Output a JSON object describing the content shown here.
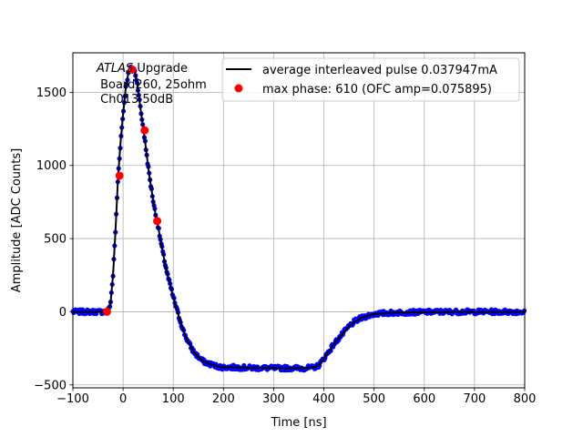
{
  "chart_data": {
    "type": "line",
    "title": "",
    "xlabel": "Time [ns]",
    "ylabel": "Amplitude [ADC Counts]",
    "xlim": [
      -100,
      800
    ],
    "ylim": [
      -520,
      1770
    ],
    "grid": true,
    "xticks": [
      -100,
      0,
      100,
      200,
      300,
      400,
      500,
      600,
      700,
      800
    ],
    "yticks": [
      -500,
      0,
      500,
      1000,
      1500
    ],
    "xtick_labels": [
      "−100",
      "0",
      "100",
      "200",
      "300",
      "400",
      "500",
      "600",
      "700",
      "800"
    ],
    "ytick_labels": [
      "−500",
      "0",
      "500",
      "1000",
      "1500"
    ],
    "annotation": {
      "atlas": "ATLAS",
      "upgrade": " Upgrade",
      "line2": " Board260, 25ohm",
      "line3": " Ch013 50dB"
    },
    "legend": {
      "placement": "top-right",
      "entries": [
        {
          "label": "average interleaved pulse 0.037947mA",
          "marker": "line",
          "color": "#000000"
        },
        {
          "label": "max phase: 610 (OFC amp=0.075895)",
          "marker": "circle",
          "color": "#ff0000"
        }
      ]
    },
    "series": [
      {
        "name": "average interleaved pulse 0.037947mA",
        "style": "line",
        "color": "#000000",
        "x": [
          -100,
          -40,
          -30,
          -25,
          -20,
          -15,
          -10,
          -5,
          0,
          5,
          10,
          15,
          18,
          22,
          25,
          30,
          35,
          40,
          45,
          50,
          55,
          60,
          65,
          70,
          75,
          80,
          90,
          100,
          110,
          120,
          130,
          140,
          150,
          160,
          175,
          190,
          200,
          225,
          250,
          300,
          330,
          360,
          375,
          385,
          390,
          400,
          410,
          420,
          430,
          440,
          450,
          460,
          470,
          480,
          490,
          500,
          520,
          550,
          600,
          650,
          700,
          750,
          800
        ],
        "y": [
          0,
          0,
          5,
          60,
          250,
          560,
          920,
          1160,
          1350,
          1520,
          1620,
          1660,
          1670,
          1655,
          1620,
          1520,
          1380,
          1260,
          1130,
          990,
          870,
          760,
          660,
          580,
          480,
          390,
          230,
          100,
          -20,
          -130,
          -210,
          -270,
          -310,
          -340,
          -360,
          -375,
          -380,
          -380,
          -383,
          -385,
          -385,
          -385,
          -383,
          -375,
          -365,
          -320,
          -270,
          -220,
          -180,
          -140,
          -100,
          -70,
          -50,
          -35,
          -25,
          -15,
          -10,
          -5,
          -2,
          0,
          0,
          0,
          0
        ]
      },
      {
        "name": "samples",
        "style": "scatter",
        "color": "#0000ff",
        "note": "dense blue sample points lying along the average pulse"
      },
      {
        "name": "max phase: 610 (OFC amp=0.075895)",
        "style": "scatter",
        "color": "#ff0000",
        "x": [
          -32,
          -7,
          18,
          43,
          68
        ],
        "y": [
          0,
          930,
          1655,
          1240,
          620
        ]
      }
    ]
  }
}
